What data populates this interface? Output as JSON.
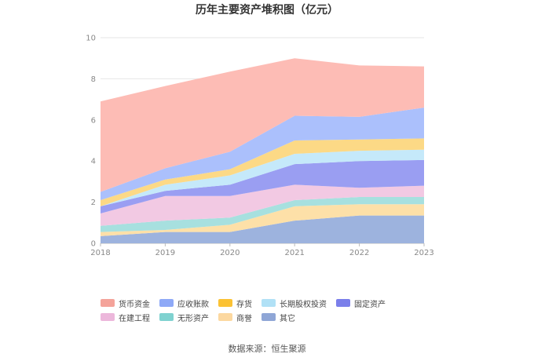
{
  "chart_data": {
    "type": "area",
    "stacked": true,
    "title": "历年主要资产堆积图（亿元）",
    "x": [
      "2018",
      "2019",
      "2020",
      "2021",
      "2022",
      "2023"
    ],
    "ylim": [
      0,
      10
    ],
    "yticks": [
      0,
      2,
      4,
      6,
      8,
      10
    ],
    "grid": true,
    "legend_position": "bottom",
    "series": [
      {
        "name": "其它",
        "color": "#9db3de",
        "values": [
          0.35,
          0.55,
          0.55,
          1.1,
          1.35,
          1.35
        ]
      },
      {
        "name": "商誉",
        "color": "#fde0a8",
        "values": [
          0.2,
          0.1,
          0.35,
          0.7,
          0.55,
          0.55
        ]
      },
      {
        "name": "无形资产",
        "color": "#a7e0df",
        "values": [
          0.3,
          0.45,
          0.35,
          0.3,
          0.35,
          0.35
        ]
      },
      {
        "name": "在建工程",
        "color": "#f2c9e3",
        "values": [
          0.6,
          1.2,
          1.05,
          0.75,
          0.45,
          0.55
        ]
      },
      {
        "name": "固定资产",
        "color": "#9a9ef2",
        "values": [
          0.35,
          0.25,
          0.55,
          1.0,
          1.3,
          1.25
        ]
      },
      {
        "name": "长期股权投资",
        "color": "#c5e9fa",
        "values": [
          0.0,
          0.3,
          0.45,
          0.5,
          0.5,
          0.5
        ]
      },
      {
        "name": "存货",
        "color": "#fcd986",
        "values": [
          0.3,
          0.25,
          0.3,
          0.65,
          0.55,
          0.55
        ]
      },
      {
        "name": "应收账款",
        "color": "#abc0fc",
        "values": [
          0.4,
          0.55,
          0.85,
          1.2,
          1.1,
          1.5
        ]
      },
      {
        "name": "货币资金",
        "color": "#fdbcb5",
        "values": [
          4.4,
          4.0,
          3.9,
          2.8,
          2.5,
          2.0
        ]
      }
    ],
    "legend_order": [
      "货币资金",
      "应收账款",
      "存货",
      "长期股权投资",
      "固定资产",
      "在建工程",
      "无形资产",
      "商誉",
      "其它"
    ],
    "legend_colors": {
      "货币资金": "#f4a39a",
      "应收账款": "#8ea9f7",
      "存货": "#fbc234",
      "长期股权投资": "#b1e1f6",
      "固定资产": "#7b7fea",
      "在建工程": "#ecb7db",
      "无形资产": "#7fd2d0",
      "商誉": "#fcd8a0",
      "其它": "#8fa6d6"
    }
  },
  "footer": {
    "source": "数据来源：恒生聚源"
  }
}
